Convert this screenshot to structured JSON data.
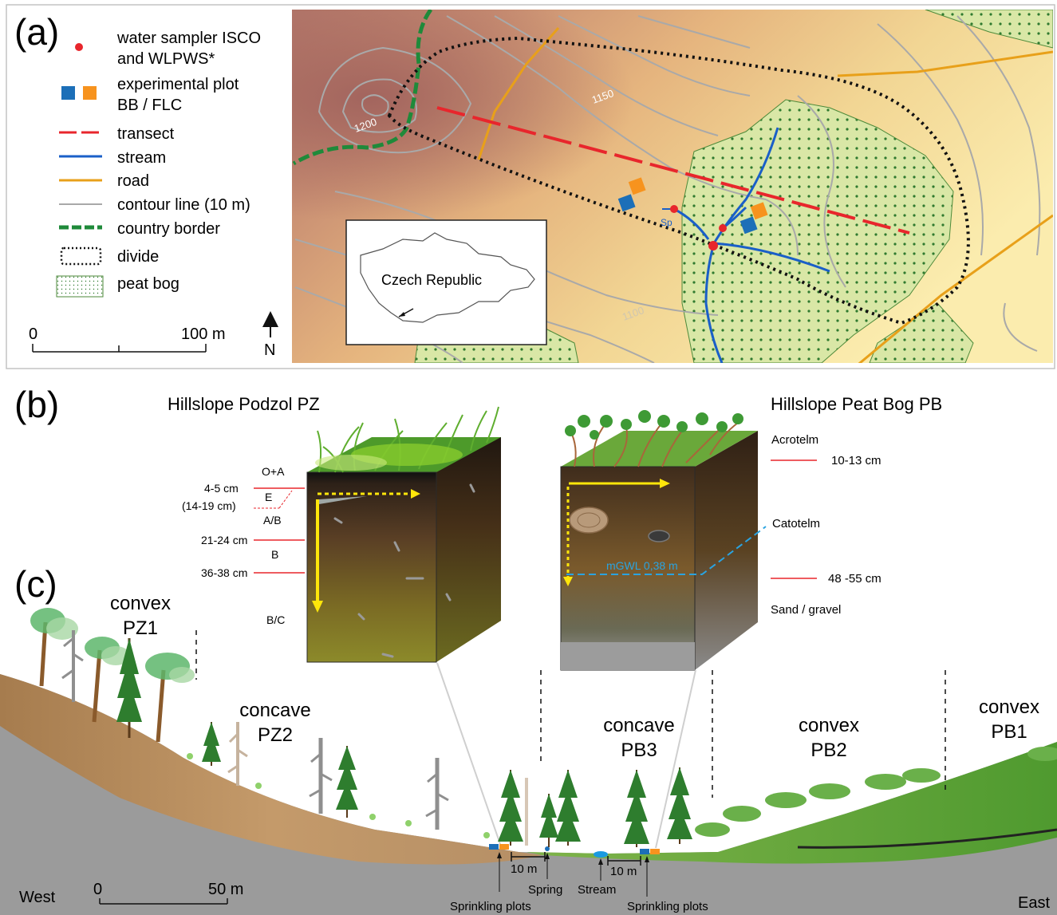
{
  "panel_a": {
    "tag": "(a)",
    "legend": {
      "sampler_l1": "water sampler ISCO",
      "sampler_l2": "and WLPWS*",
      "plot_l1": "experimental plot",
      "plot_l2": "BB / FLC",
      "transect": "transect",
      "stream": "stream",
      "road": "road",
      "contour": "contour line (10 m)",
      "border": "country border",
      "divide": "divide",
      "peat": "peat bog"
    },
    "scale": {
      "zero": "0",
      "end": "100 m"
    },
    "north": "N",
    "contour_labels": {
      "c1200": "1200",
      "c1150": "1150",
      "c1100": "1100"
    },
    "spring_label": "Sp",
    "inset": {
      "country": "Czech Republic"
    },
    "colors": {
      "sampler": "#e8262c",
      "plot_bb": "#1c6fb8",
      "plot_flc": "#f7931e",
      "transect": "#e8262c",
      "stream": "#1a5fc8",
      "road": "#e8a01a",
      "contour": "#a9a9a9",
      "border": "#1f8a3a",
      "divide": "#111111",
      "peat_dots": "#2f7a2f"
    }
  },
  "panel_b": {
    "tag": "(b)",
    "pz_title": "Hillslope Podzol PZ",
    "pb_title": "Hillslope Peat Bog PB",
    "pz_horizons": {
      "oa": "O+A",
      "e": "E",
      "ab": "A/B",
      "b": "B",
      "bc": "B/C"
    },
    "pz_depths": {
      "d1": "4-5 cm",
      "d2": "(14-19 cm)",
      "d3": "21-24 cm",
      "d4": "36-38 cm"
    },
    "pb_layers": {
      "acrotelm": "Acrotelm",
      "catotelm": "Catotelm",
      "sand": "Sand / gravel"
    },
    "pb_depths": {
      "d1": "10-13 cm",
      "d2": "48 -55 cm"
    },
    "gwl": "mGWL 0,38 m"
  },
  "panel_c": {
    "tag": "(c)",
    "zones": {
      "pz1": {
        "shape": "convex",
        "name": "PZ1"
      },
      "pz2": {
        "shape": "concave",
        "name": "PZ2"
      },
      "pb3": {
        "shape": "concave",
        "name": "PB3"
      },
      "pb2": {
        "shape": "convex",
        "name": "PB2"
      },
      "pb1": {
        "shape": "convex",
        "name": "PB1"
      }
    },
    "west": "West",
    "east": "East",
    "scale": {
      "zero": "0",
      "end": "50 m"
    },
    "dist1": "10 m",
    "dist2": "10 m",
    "spring": "Spring",
    "stream": "Stream",
    "sprink1": "Sprinkling plots",
    "sprink2": "Sprinkling plots"
  }
}
